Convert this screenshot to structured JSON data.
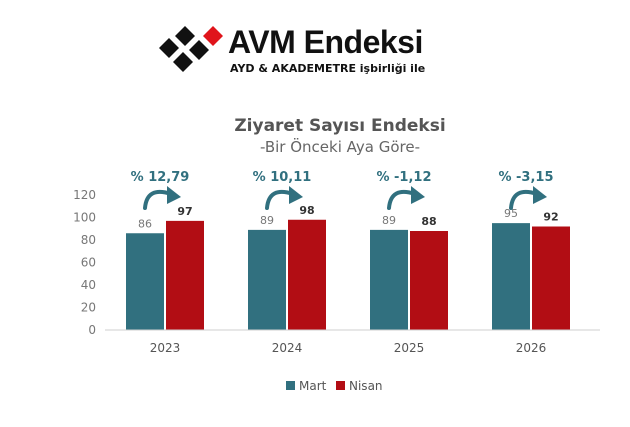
{
  "logo": {
    "title": "AVM Endeksi",
    "subtitle": "AYD & AKADEMETRE işbirliği ile"
  },
  "chart_data": {
    "type": "bar",
    "title": "Ziyaret Sayısı Endeksi",
    "subtitle": "-Bir Önceki Aya Göre-",
    "categories": [
      "2023",
      "2024",
      "2025",
      "2026"
    ],
    "series": [
      {
        "name": "Mart",
        "color": "#31707f",
        "values": [
          86,
          89,
          89,
          95
        ]
      },
      {
        "name": "Nisan",
        "color": "#b20d14",
        "values": [
          97,
          98,
          88,
          92
        ]
      }
    ],
    "change_labels": [
      "% 12,79",
      "% 10,11",
      "% -1,12",
      "% -3,15"
    ],
    "ylim": [
      0,
      120
    ],
    "yticks": [
      0,
      20,
      40,
      60,
      80,
      100,
      120
    ],
    "xlabel": "",
    "ylabel": "",
    "legend_position": "bottom",
    "grid": false
  }
}
